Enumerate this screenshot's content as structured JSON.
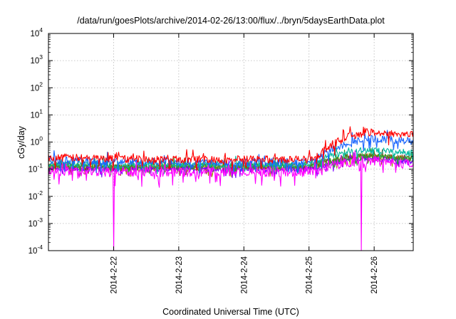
{
  "chart_data": {
    "type": "line",
    "title": "/data/run/goesPlots/archive/2014-02-26/13:00/flux/../bryn/5daysEarthData.plot",
    "xlabel": "Coordinated Universal Time (UTC)",
    "ylabel": "cGy/day",
    "yscale": "log",
    "ylim": [
      0.0001,
      10000
    ],
    "xlim_days": [
      21.0,
      26.6
    ],
    "grid": true,
    "legend": "none",
    "x_ticks": [
      {
        "label": "2014-2-22",
        "day": 22
      },
      {
        "label": "2014-2-23",
        "day": 23
      },
      {
        "label": "2014-2-24",
        "day": 24
      },
      {
        "label": "2014-2-25",
        "day": 25
      },
      {
        "label": "2014-2-26",
        "day": 26
      }
    ],
    "y_ticks": [
      {
        "base": "10",
        "exp": "-4",
        "value": 0.0001
      },
      {
        "base": "10",
        "exp": "-3",
        "value": 0.001
      },
      {
        "base": "10",
        "exp": "-2",
        "value": 0.01
      },
      {
        "base": "10",
        "exp": "-1",
        "value": 0.1
      },
      {
        "base": "10",
        "exp": "0",
        "value": 1
      },
      {
        "base": "10",
        "exp": "1",
        "value": 10
      },
      {
        "base": "10",
        "exp": "2",
        "value": 100
      },
      {
        "base": "10",
        "exp": "3",
        "value": 1000
      },
      {
        "base": "10",
        "exp": "4",
        "value": 10000
      }
    ],
    "series": [
      {
        "color": "#9a9a00",
        "x": [
          21.0,
          22.0,
          23.0,
          24.0,
          24.9,
          25.1,
          25.3,
          25.6,
          25.9,
          26.2,
          26.6
        ],
        "y": [
          0.12,
          0.11,
          0.11,
          0.11,
          0.11,
          0.12,
          0.18,
          0.26,
          0.3,
          0.27,
          0.24
        ],
        "noise": 0.1
      },
      {
        "color": "#8b4513",
        "x": [
          21.0,
          22.0,
          23.0,
          24.0,
          24.9,
          25.1,
          25.3,
          25.6,
          25.9,
          26.2,
          26.6
        ],
        "y": [
          0.13,
          0.12,
          0.12,
          0.12,
          0.12,
          0.13,
          0.2,
          0.28,
          0.32,
          0.29,
          0.25
        ],
        "noise": 0.1
      },
      {
        "color": "#7a00ff",
        "x": [
          21.0,
          22.0,
          23.0,
          24.0,
          24.9,
          25.1,
          25.3,
          25.6,
          25.9,
          26.2,
          26.6
        ],
        "y": [
          0.11,
          0.1,
          0.1,
          0.1,
          0.1,
          0.11,
          0.16,
          0.22,
          0.25,
          0.22,
          0.19
        ],
        "noise": 0.1
      },
      {
        "color": "#2f9e2f",
        "x": [
          21.0,
          22.0,
          23.0,
          24.0,
          24.9,
          25.1,
          25.3,
          25.6,
          25.9,
          26.2,
          26.6
        ],
        "y": [
          0.14,
          0.13,
          0.13,
          0.13,
          0.13,
          0.14,
          0.2,
          0.28,
          0.31,
          0.27,
          0.23
        ],
        "noise": 0.12
      },
      {
        "color": "#00b8a0",
        "x": [
          21.0,
          22.0,
          23.0,
          24.0,
          24.9,
          25.1,
          25.3,
          25.6,
          25.9,
          26.2,
          26.6
        ],
        "y": [
          0.16,
          0.15,
          0.15,
          0.15,
          0.15,
          0.17,
          0.3,
          0.45,
          0.5,
          0.45,
          0.4
        ],
        "noise": 0.12
      },
      {
        "color": "#ff00ff",
        "x": [
          21.0,
          22.0,
          23.0,
          24.0,
          24.9,
          25.1,
          25.3,
          25.6,
          25.9,
          26.2,
          26.6
        ],
        "y": [
          0.085,
          0.08,
          0.08,
          0.08,
          0.08,
          0.09,
          0.13,
          0.18,
          0.21,
          0.18,
          0.15
        ],
        "noise": 0.18,
        "dips": [
          22.0,
          25.8
        ]
      },
      {
        "color": "#1a66ff",
        "x": [
          21.0,
          22.0,
          23.0,
          24.0,
          24.9,
          25.1,
          25.3,
          25.6,
          25.9,
          26.2,
          26.6
        ],
        "y": [
          0.22,
          0.19,
          0.18,
          0.18,
          0.18,
          0.22,
          0.5,
          0.95,
          1.3,
          1.2,
          1.1
        ],
        "noise": 0.14
      },
      {
        "color": "#ff0000",
        "x": [
          21.0,
          22.0,
          23.0,
          24.0,
          24.9,
          25.1,
          25.3,
          25.6,
          25.9,
          26.2,
          26.6
        ],
        "y": [
          0.28,
          0.24,
          0.23,
          0.23,
          0.23,
          0.28,
          0.7,
          1.6,
          2.3,
          2.1,
          1.9
        ],
        "noise": 0.14
      }
    ]
  }
}
